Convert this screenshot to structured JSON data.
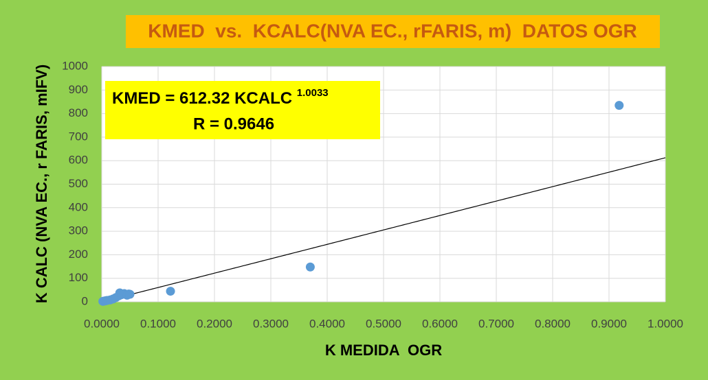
{
  "chart_data": {
    "type": "scatter",
    "title": "KMED  vs.  KCALC(NVA EC., rFARIS, m)  DATOS OGR",
    "x_label": "K MEDIDA  OGR",
    "y_label": "K CALC (NVA EC., r FARIS, mIFV)",
    "annotation": {
      "equation": "KMED = 612.32 KCALC ",
      "exponent_text": "1.0033",
      "r_text": "R = 0.9646"
    },
    "trendline": {
      "coefficient": 612.32,
      "exponent": 1.0033,
      "color": "#000000"
    },
    "x": [
      0.002,
      0.004,
      0.006,
      0.008,
      0.01,
      0.015,
      0.02,
      0.025,
      0.03,
      0.032,
      0.035,
      0.04,
      0.045,
      0.048,
      0.05,
      0.122,
      0.37,
      0.918
    ],
    "values": [
      2,
      3,
      4,
      5,
      6,
      8,
      12,
      18,
      25,
      38,
      30,
      35,
      28,
      33,
      32,
      45,
      148,
      835
    ],
    "color": "#5b9bd5",
    "xlim": [
      0,
      1
    ],
    "ylim": [
      0,
      1000
    ],
    "xticks": [
      {
        "value": 0,
        "label": "0.0000"
      },
      {
        "value": 0.1,
        "label": "0.1000"
      },
      {
        "value": 0.2,
        "label": "0.2000"
      },
      {
        "value": 0.3,
        "label": "0.3000"
      },
      {
        "value": 0.4,
        "label": "0.4000"
      },
      {
        "value": 0.5,
        "label": "0.5000"
      },
      {
        "value": 0.6,
        "label": "0.6000"
      },
      {
        "value": 0.7,
        "label": "0.7000"
      },
      {
        "value": 0.8,
        "label": "0.8000"
      },
      {
        "value": 0.9,
        "label": "0.9000"
      },
      {
        "value": 1,
        "label": "1.0000"
      }
    ],
    "yticks": [
      0,
      100,
      200,
      300,
      400,
      500,
      600,
      700,
      800,
      900,
      1000
    ],
    "grid": true
  }
}
